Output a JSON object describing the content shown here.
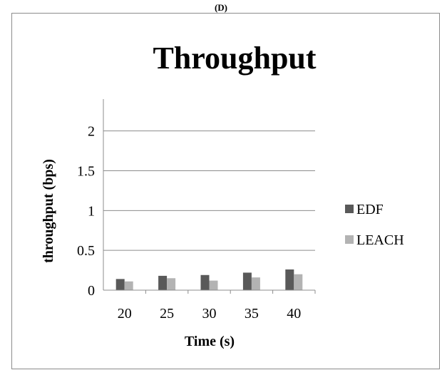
{
  "panel_label": "(D)",
  "chart_data": {
    "type": "bar",
    "title": "Throughput",
    "xlabel": "Time (s)",
    "ylabel": "throughput (bps)",
    "categories": [
      "20",
      "25",
      "30",
      "35",
      "40"
    ],
    "series": [
      {
        "name": "EDF",
        "values": [
          0.14,
          0.18,
          0.19,
          0.22,
          0.26
        ],
        "color": "#595959"
      },
      {
        "name": "LEACH",
        "values": [
          0.11,
          0.15,
          0.12,
          0.16,
          0.2
        ],
        "color": "#b3b3b3"
      }
    ],
    "ylim": [
      0,
      2.4
    ],
    "yticks": [
      "0",
      "0.5",
      "1",
      "1.5",
      "2"
    ],
    "grid": true,
    "legend_position": "right"
  }
}
